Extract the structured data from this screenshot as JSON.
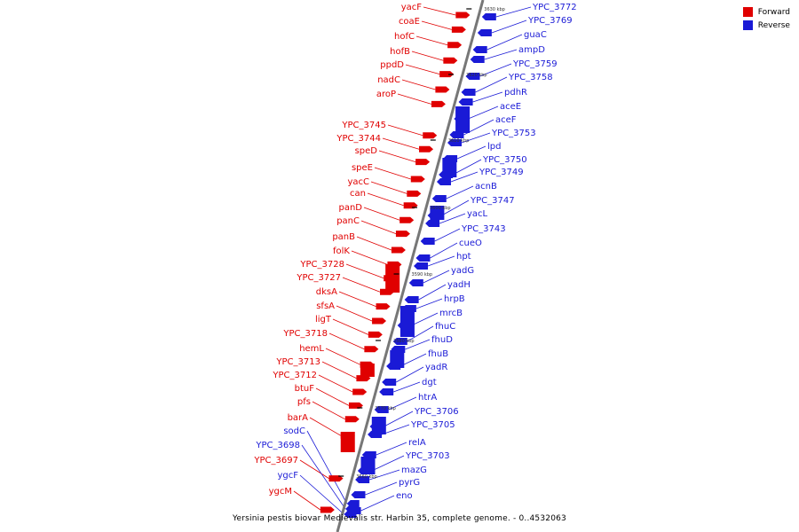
{
  "colors": {
    "forward": "#e00000",
    "reverse": "#1a1ad6",
    "backbone": "#777777"
  },
  "legend": {
    "forward_label": "Forward",
    "reverse_label": "Reverse"
  },
  "caption": "Yersinia pestis biovar Medievalis str. Harbin 35, complete genome. - 0..4532063",
  "ticks": [
    "3630 kbp",
    "3620 kbp",
    "3610 kbp",
    "3600 kbp",
    "3590 kbp",
    "3580 kbp",
    "3570 kbp",
    "3560 kbp"
  ],
  "forward_genes": [
    "yacF",
    "coaE",
    "hofC",
    "hofB",
    "ppdD",
    "nadC",
    "aroP",
    "YPC_3745",
    "YPC_3744",
    "speD",
    "speE",
    "yacC",
    "can",
    "panD",
    "panC",
    "panB",
    "folK",
    "YPC_3728",
    "YPC_3727",
    "dksA",
    "sfsA",
    "ligT",
    "YPC_3718",
    "hemL",
    "YPC_3713",
    "YPC_3712",
    "btuF",
    "pfs",
    "barA",
    "YPC_3697",
    "ygcM"
  ],
  "reverse_genes": [
    "YPC_3772",
    "YPC_3769",
    "guaC",
    "ampD",
    "YPC_3759",
    "YPC_3758",
    "pdhR",
    "aceE",
    "aceF",
    "YPC_3753",
    "lpd",
    "YPC_3750",
    "YPC_3749",
    "acnB",
    "YPC_3747",
    "yacL",
    "YPC_3743",
    "cueO",
    "hpt",
    "yadG",
    "yadH",
    "hrpB",
    "mrcB",
    "fhuC",
    "fhuD",
    "fhuB",
    "yadR",
    "dgt",
    "htrA",
    "YPC_3706",
    "YPC_3705",
    "relA",
    "YPC_3703",
    "mazG",
    "pyrG",
    "eno"
  ],
  "left_reverse_genes": [
    "sodC",
    "YPC_3698",
    "ygcF"
  ]
}
